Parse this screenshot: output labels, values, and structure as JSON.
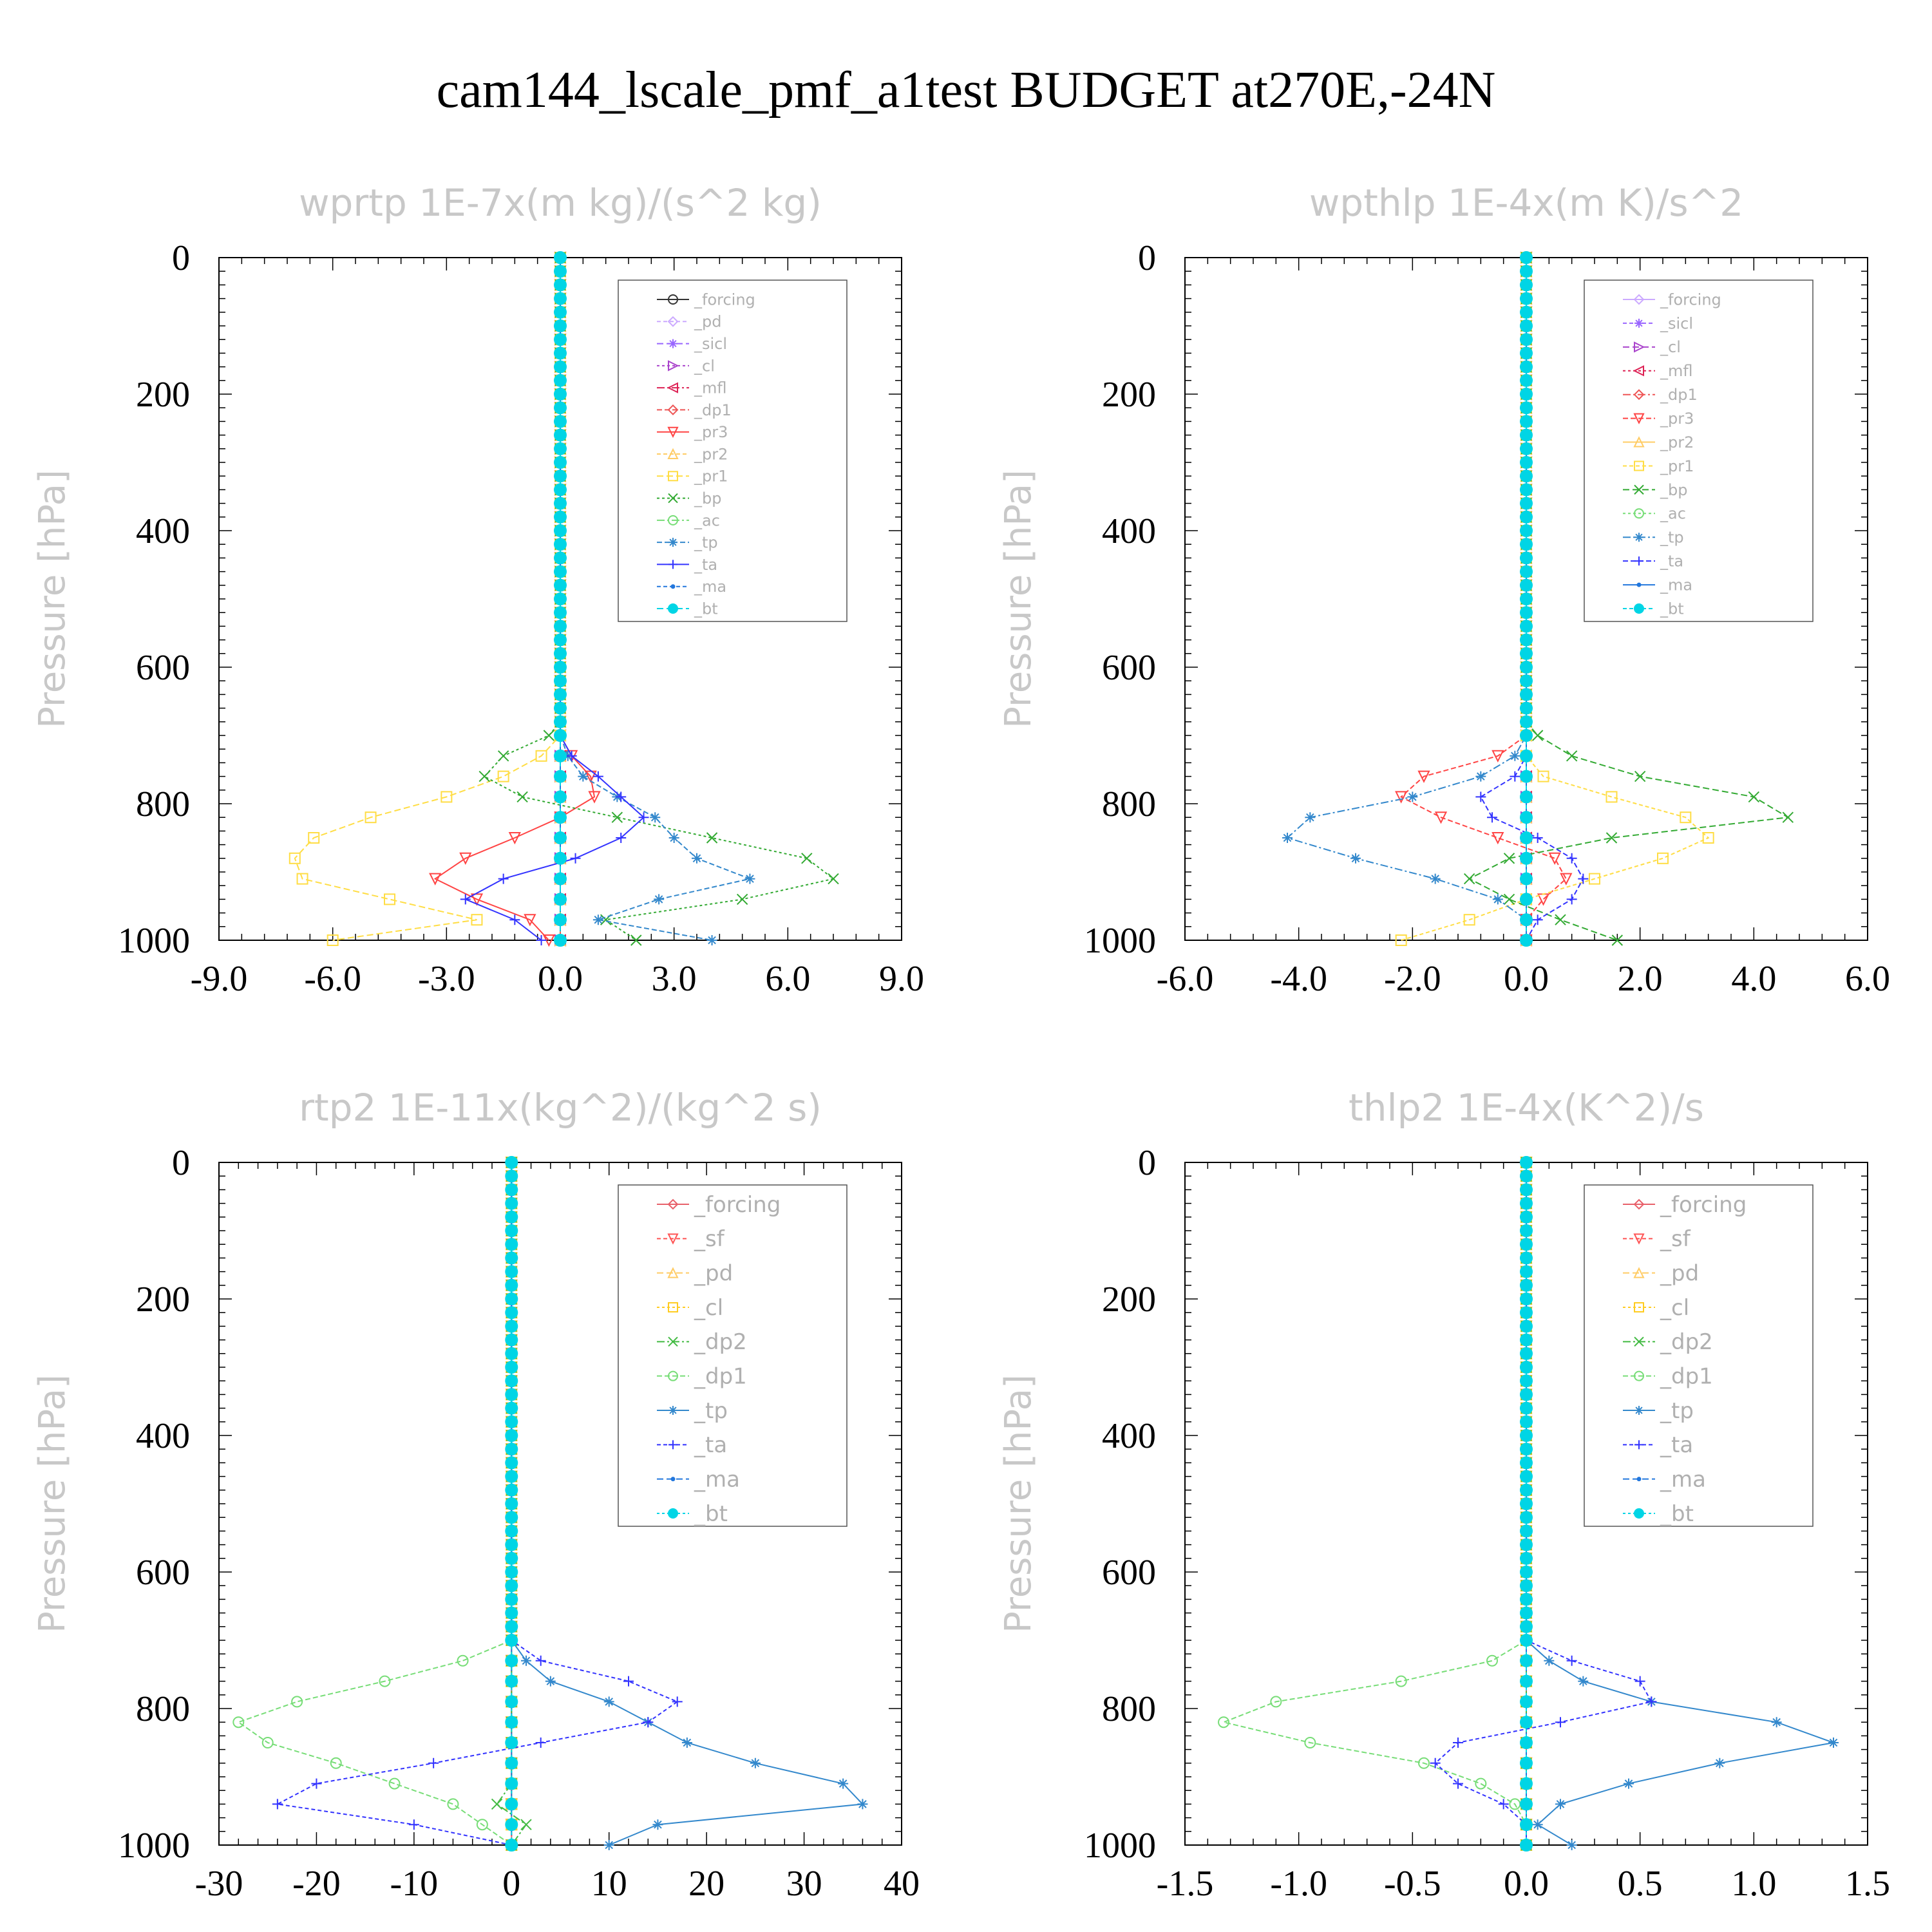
{
  "title": "cam144_lscale_pmf_a1test  BUDGET at270E,-24N",
  "colors": {
    "forcing_black": "#333333",
    "forcing": "#e8606a",
    "pd": "#ccaaff",
    "sicl": "#9966ff",
    "cl_purple": "#aa44cc",
    "mfl": "#dd2255",
    "dp1": "#ee5555",
    "pr3": "#ff4444",
    "pr2": "#ffcc66",
    "pr1": "#ffdd44",
    "bp": "#33aa33",
    "ac": "#77dd77",
    "tp": "#3388cc",
    "ta": "#3333ff",
    "ma": "#2277dd",
    "bt": "#00d5e5",
    "sf": "#ff5555",
    "cl_yellow": "#ffcc22",
    "dp2": "#44bb44"
  },
  "chart_data": [
    {
      "type": "line",
      "title": "wprtp  1E-7x(m kg)/(s^2 kg)",
      "ylabel": "Pressure [hPa]",
      "xlabel": "",
      "xlim": [
        -9,
        9
      ],
      "ylim": [
        0,
        1000
      ],
      "y_inverted": true,
      "xticks": [
        "-9.0",
        "-6.0",
        "-3.0",
        "0.0",
        "3.0",
        "6.0",
        "9.0"
      ],
      "yticks": [
        "0",
        "200",
        "400",
        "600",
        "800",
        "1000"
      ],
      "legend": [
        "_forcing",
        "_pd",
        "_sicl",
        "_cl",
        "_mfl",
        "_dp1",
        "_pr3",
        "_pr2",
        "_pr1",
        "_bp",
        "_ac",
        "_tp",
        "_ta",
        "_ma",
        "_bt"
      ],
      "pressure": [
        700,
        730,
        760,
        790,
        820,
        850,
        880,
        910,
        940,
        970,
        1000
      ],
      "series": [
        {
          "name": "_forcing",
          "color": "#333333",
          "marker": "circle",
          "values": [
            0,
            0,
            0,
            0,
            0,
            0,
            0,
            0,
            0,
            0,
            0
          ]
        },
        {
          "name": "_pd",
          "color": "#ccaaff",
          "marker": "diamond",
          "values": [
            0,
            0,
            0,
            0,
            0,
            0,
            0,
            0,
            0,
            0,
            0
          ]
        },
        {
          "name": "_sicl",
          "color": "#9966ff",
          "marker": "star",
          "values": [
            0,
            0,
            0,
            0,
            0,
            0,
            0,
            0,
            0,
            0,
            0
          ]
        },
        {
          "name": "_cl",
          "color": "#aa44cc",
          "marker": "triangle-right",
          "values": [
            0,
            0,
            0,
            0,
            0,
            0,
            0,
            0,
            0,
            0,
            0
          ]
        },
        {
          "name": "_mfl",
          "color": "#dd2255",
          "marker": "triangle-left",
          "values": [
            0,
            0,
            0,
            0,
            0,
            0,
            0,
            0,
            0,
            0,
            0
          ]
        },
        {
          "name": "_dp1",
          "color": "#ee5555",
          "marker": "diamond",
          "values": [
            0,
            0,
            0,
            0,
            0,
            0,
            0,
            0,
            0,
            0,
            0
          ]
        },
        {
          "name": "_pr3",
          "color": "#ff4444",
          "marker": "triangle-down",
          "values": [
            0,
            0.3,
            0.8,
            0.9,
            0,
            -1.2,
            -2.5,
            -3.3,
            -2.2,
            -0.8,
            -0.3
          ]
        },
        {
          "name": "_pr2",
          "color": "#ffcc66",
          "marker": "triangle-up",
          "values": [
            0,
            0,
            0,
            0,
            0,
            0,
            0,
            0,
            0,
            0,
            0
          ]
        },
        {
          "name": "_pr1",
          "color": "#ffdd44",
          "marker": "square",
          "values": [
            0,
            -0.5,
            -1.5,
            -3.0,
            -5.0,
            -6.5,
            -7.0,
            -6.8,
            -4.5,
            -2.2,
            -6.0
          ]
        },
        {
          "name": "_bp",
          "color": "#33aa33",
          "marker": "x",
          "values": [
            -0.3,
            -1.5,
            -2.0,
            -1.0,
            1.5,
            4.0,
            6.5,
            7.2,
            4.8,
            1.2,
            2.0
          ]
        },
        {
          "name": "_ac",
          "color": "#77dd77",
          "marker": "circle",
          "values": [
            0,
            0,
            0,
            0,
            0,
            0,
            0,
            0,
            0,
            0,
            0
          ]
        },
        {
          "name": "_tp",
          "color": "#3388cc",
          "marker": "asterisk",
          "values": [
            0,
            0.2,
            0.6,
            1.5,
            2.5,
            3.0,
            3.6,
            5.0,
            2.6,
            1.0,
            4.0
          ]
        },
        {
          "name": "_ta",
          "color": "#3333ff",
          "marker": "plus",
          "values": [
            0,
            0.3,
            1.0,
            1.6,
            2.2,
            1.6,
            0.4,
            -1.5,
            -2.5,
            -1.2,
            -0.5
          ]
        },
        {
          "name": "_ma",
          "color": "#2277dd",
          "marker": "dot",
          "values": [
            0,
            0,
            0,
            0,
            0,
            0,
            0,
            0,
            0,
            0,
            0
          ]
        },
        {
          "name": "_bt",
          "color": "#00d5e5",
          "marker": "filled-circle",
          "values": [
            0,
            0,
            0,
            0,
            0,
            0,
            0,
            0,
            0,
            0,
            0
          ]
        }
      ]
    },
    {
      "type": "line",
      "title": "wpthlp  1E-4x(m K)/s^2",
      "ylabel": "Pressure [hPa]",
      "xlabel": "",
      "xlim": [
        -6,
        6
      ],
      "ylim": [
        0,
        1000
      ],
      "y_inverted": true,
      "xticks": [
        "-6.0",
        "-4.0",
        "-2.0",
        "0.0",
        "2.0",
        "4.0",
        "6.0"
      ],
      "yticks": [
        "0",
        "200",
        "400",
        "600",
        "800",
        "1000"
      ],
      "legend": [
        "_forcing",
        "_sicl",
        "_cl",
        "_mfl",
        "_dp1",
        "_pr3",
        "_pr2",
        "_pr1",
        "_bp",
        "_ac",
        "_tp",
        "_ta",
        "_ma",
        "_bt"
      ],
      "pressure": [
        700,
        730,
        760,
        790,
        820,
        850,
        880,
        910,
        940,
        970,
        1000
      ],
      "series": [
        {
          "name": "_forcing",
          "color": "#ccaaff",
          "marker": "diamond",
          "values": [
            0,
            0,
            0,
            0,
            0,
            0,
            0,
            0,
            0,
            0,
            0
          ]
        },
        {
          "name": "_sicl",
          "color": "#9966ff",
          "marker": "star",
          "values": [
            0,
            0,
            0,
            0,
            0,
            0,
            0,
            0,
            0,
            0,
            0
          ]
        },
        {
          "name": "_cl",
          "color": "#aa44cc",
          "marker": "triangle-right",
          "values": [
            0,
            0,
            0,
            0,
            0,
            0,
            0,
            0,
            0,
            0,
            0
          ]
        },
        {
          "name": "_mfl",
          "color": "#dd2255",
          "marker": "triangle-left",
          "values": [
            0,
            0,
            0,
            0,
            0,
            0,
            0,
            0,
            0,
            0,
            0
          ]
        },
        {
          "name": "_dp1",
          "color": "#ee5555",
          "marker": "diamond",
          "values": [
            0,
            0,
            0,
            0,
            0,
            0,
            0,
            0,
            0,
            0,
            0
          ]
        },
        {
          "name": "_pr3",
          "color": "#ff4444",
          "marker": "triangle-down",
          "values": [
            0,
            -0.5,
            -1.8,
            -2.2,
            -1.5,
            -0.5,
            0.5,
            0.7,
            0.3,
            0,
            0
          ]
        },
        {
          "name": "_pr2",
          "color": "#ffcc66",
          "marker": "triangle-up",
          "values": [
            0,
            0,
            0,
            0,
            0,
            0,
            0,
            0,
            0,
            0,
            0
          ]
        },
        {
          "name": "_pr1",
          "color": "#ffdd44",
          "marker": "square",
          "values": [
            0,
            0,
            0.3,
            1.5,
            2.8,
            3.2,
            2.4,
            1.2,
            0,
            -1.0,
            -2.2
          ]
        },
        {
          "name": "_bp",
          "color": "#33aa33",
          "marker": "x",
          "values": [
            0.2,
            0.8,
            2.0,
            4.0,
            4.6,
            1.5,
            -0.3,
            -1.0,
            -0.3,
            0.6,
            1.6
          ]
        },
        {
          "name": "_ac",
          "color": "#77dd77",
          "marker": "circle",
          "values": [
            0,
            0,
            0,
            0,
            0,
            0,
            0,
            0,
            0,
            0,
            0
          ]
        },
        {
          "name": "_tp",
          "color": "#3388cc",
          "marker": "asterisk",
          "values": [
            0,
            -0.2,
            -0.8,
            -2.0,
            -3.8,
            -4.2,
            -3.0,
            -1.6,
            -0.5,
            0,
            0
          ]
        },
        {
          "name": "_ta",
          "color": "#3333ff",
          "marker": "plus",
          "values": [
            0,
            0,
            -0.2,
            -0.8,
            -0.6,
            0.2,
            0.8,
            1.0,
            0.8,
            0.2,
            0
          ]
        },
        {
          "name": "_ma",
          "color": "#2277dd",
          "marker": "dot",
          "values": [
            0,
            0,
            0,
            0,
            0,
            0,
            0,
            0,
            0,
            0,
            0
          ]
        },
        {
          "name": "_bt",
          "color": "#00d5e5",
          "marker": "filled-circle",
          "values": [
            0,
            0,
            0,
            0,
            0,
            0,
            0,
            0,
            0,
            0,
            0
          ]
        }
      ]
    },
    {
      "type": "line",
      "title": "rtp2  1E-11x(kg^2)/(kg^2 s)",
      "ylabel": "Pressure [hPa]",
      "xlabel": "",
      "xlim": [
        -30,
        40
      ],
      "ylim": [
        0,
        1000
      ],
      "y_inverted": true,
      "xticks": [
        "-30",
        "-20",
        "-10",
        "0",
        "10",
        "20",
        "30",
        "40"
      ],
      "yticks": [
        "0",
        "200",
        "400",
        "600",
        "800",
        "1000"
      ],
      "legend": [
        "_forcing",
        "_sf",
        "_pd",
        "_cl",
        "_dp2",
        "_dp1",
        "_tp",
        "_ta",
        "_ma",
        "_bt"
      ],
      "pressure": [
        700,
        730,
        760,
        790,
        820,
        850,
        880,
        910,
        940,
        970,
        1000
      ],
      "series": [
        {
          "name": "_forcing",
          "color": "#e8606a",
          "marker": "diamond",
          "values": [
            0,
            0,
            0,
            0,
            0,
            0,
            0,
            0,
            0,
            0,
            0
          ]
        },
        {
          "name": "_sf",
          "color": "#ff5555",
          "marker": "triangle-down",
          "values": [
            0,
            0,
            0,
            0,
            0,
            0,
            0,
            0,
            0,
            0,
            0
          ]
        },
        {
          "name": "_pd",
          "color": "#ffcc66",
          "marker": "triangle-up",
          "values": [
            0,
            0,
            0,
            0,
            0,
            0,
            0,
            0,
            0,
            0,
            0
          ]
        },
        {
          "name": "_cl",
          "color": "#ffcc22",
          "marker": "square",
          "values": [
            0,
            0,
            0,
            0,
            0,
            0,
            0,
            0,
            0,
            0,
            0
          ]
        },
        {
          "name": "_dp2",
          "color": "#44bb44",
          "marker": "x",
          "values": [
            0,
            0,
            0,
            0,
            0,
            0,
            0,
            0,
            -1.5,
            1.5,
            0
          ]
        },
        {
          "name": "_dp1",
          "color": "#77dd77",
          "marker": "circle",
          "values": [
            0,
            -5,
            -13,
            -22,
            -28,
            -25,
            -18,
            -12,
            -6,
            -3,
            0
          ]
        },
        {
          "name": "_tp",
          "color": "#3388cc",
          "marker": "asterisk",
          "values": [
            0,
            1.5,
            4,
            10,
            14,
            18,
            25,
            34,
            36,
            15,
            10
          ]
        },
        {
          "name": "_ta",
          "color": "#3333ff",
          "marker": "plus",
          "values": [
            0,
            3,
            12,
            17,
            14,
            3,
            -8,
            -20,
            -24,
            -10,
            0
          ]
        },
        {
          "name": "_ma",
          "color": "#2277dd",
          "marker": "dot",
          "values": [
            0,
            0,
            0,
            0,
            0,
            0,
            0,
            0,
            0,
            0,
            0
          ]
        },
        {
          "name": "_bt",
          "color": "#00d5e5",
          "marker": "filled-circle",
          "values": [
            0,
            0,
            0,
            0,
            0,
            0,
            0,
            0,
            0,
            0,
            0
          ]
        }
      ]
    },
    {
      "type": "line",
      "title": "thlp2  1E-4x(K^2)/s",
      "ylabel": "Pressure [hPa]",
      "xlabel": "",
      "xlim": [
        -1.5,
        1.5
      ],
      "ylim": [
        0,
        1000
      ],
      "y_inverted": true,
      "xticks": [
        "-1.5",
        "-1.0",
        "-0.5",
        "0.0",
        "0.5",
        "1.0",
        "1.5"
      ],
      "yticks": [
        "0",
        "200",
        "400",
        "600",
        "800",
        "1000"
      ],
      "legend": [
        "_forcing",
        "_sf",
        "_pd",
        "_cl",
        "_dp2",
        "_dp1",
        "_tp",
        "_ta",
        "_ma",
        "_bt"
      ],
      "pressure": [
        700,
        730,
        760,
        790,
        820,
        850,
        880,
        910,
        940,
        970,
        1000
      ],
      "series": [
        {
          "name": "_forcing",
          "color": "#e8606a",
          "marker": "diamond",
          "values": [
            0,
            0,
            0,
            0,
            0,
            0,
            0,
            0,
            0,
            0,
            0
          ]
        },
        {
          "name": "_sf",
          "color": "#ff5555",
          "marker": "triangle-down",
          "values": [
            0,
            0,
            0,
            0,
            0,
            0,
            0,
            0,
            0,
            0,
            0
          ]
        },
        {
          "name": "_pd",
          "color": "#ffcc66",
          "marker": "triangle-up",
          "values": [
            0,
            0,
            0,
            0,
            0,
            0,
            0,
            0,
            0,
            0,
            0
          ]
        },
        {
          "name": "_cl",
          "color": "#ffcc22",
          "marker": "square",
          "values": [
            0,
            0,
            0,
            0,
            0,
            0,
            0,
            0,
            0,
            0,
            0
          ]
        },
        {
          "name": "_dp2",
          "color": "#44bb44",
          "marker": "x",
          "values": [
            0,
            0,
            0,
            0,
            0,
            0,
            0,
            0,
            0,
            0,
            0
          ]
        },
        {
          "name": "_dp1",
          "color": "#77dd77",
          "marker": "circle",
          "values": [
            0,
            -0.15,
            -0.55,
            -1.1,
            -1.33,
            -0.95,
            -0.45,
            -0.2,
            -0.05,
            0,
            0
          ]
        },
        {
          "name": "_tp",
          "color": "#3388cc",
          "marker": "asterisk",
          "values": [
            0,
            0.1,
            0.25,
            0.55,
            1.1,
            1.35,
            0.85,
            0.45,
            0.15,
            0.05,
            0.2
          ]
        },
        {
          "name": "_ta",
          "color": "#3333ff",
          "marker": "plus",
          "values": [
            0,
            0.2,
            0.5,
            0.55,
            0.15,
            -0.3,
            -0.4,
            -0.3,
            -0.1,
            0,
            0
          ]
        },
        {
          "name": "_ma",
          "color": "#2277dd",
          "marker": "dot",
          "values": [
            0,
            0,
            0,
            0,
            0,
            0,
            0,
            0,
            0,
            0,
            0
          ]
        },
        {
          "name": "_bt",
          "color": "#00d5e5",
          "marker": "filled-circle",
          "values": [
            0,
            0,
            0,
            0,
            0,
            0,
            0,
            0,
            0,
            0,
            0
          ]
        }
      ]
    }
  ]
}
